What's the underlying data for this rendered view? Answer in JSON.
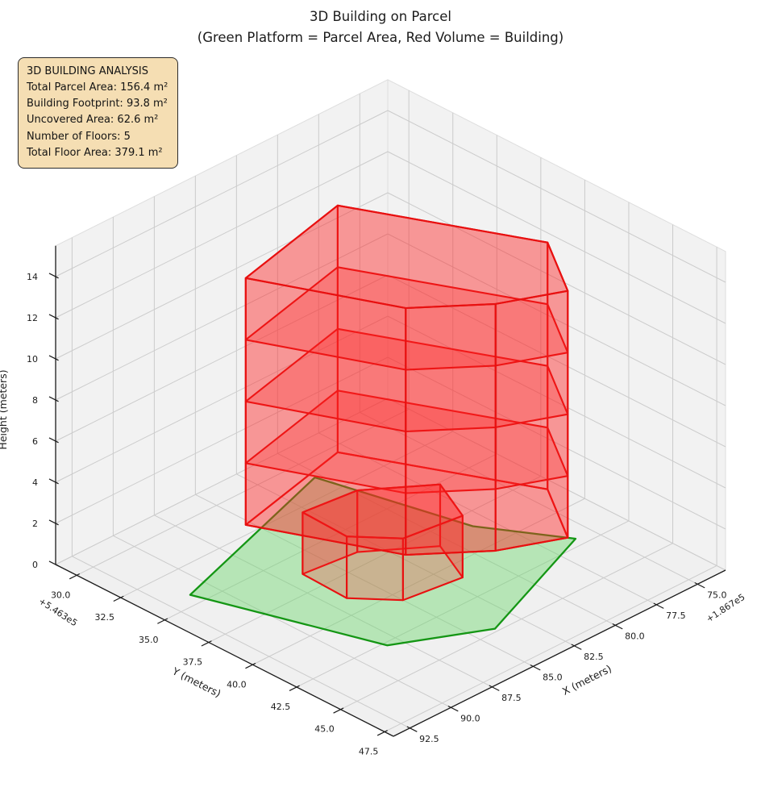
{
  "header": {
    "title_line1": "3D Building on Parcel",
    "title_line2": "(Green Platform = Parcel Area, Red Volume = Building)"
  },
  "annotation": {
    "lines": [
      "3D BUILDING ANALYSIS",
      "Total Parcel Area: 156.4 m²",
      "Building Footprint: 93.8 m²",
      "Uncovered Area: 62.6 m²",
      "Number of Floors: 5",
      "Total Floor Area: 379.1 m²"
    ],
    "bg_color": "#f5deb3"
  },
  "chart_data": {
    "type": "3d-building-extrusion",
    "title": "3D Building on Parcel",
    "subtitle": "(Green Platform = Parcel Area, Red Volume = Building)",
    "stats": {
      "total_parcel_area_m2": 156.4,
      "building_footprint_m2": 93.8,
      "uncovered_area_m2": 62.6,
      "number_of_floors": 5,
      "total_floor_area_m2": 379.1
    },
    "axes": {
      "x": {
        "label": "X (meters)",
        "ticks": [
          75.0,
          77.5,
          80.0,
          82.5,
          85.0,
          87.5,
          90.0,
          92.5
        ],
        "offset_text": "+1.867e5",
        "range": [
          73.3,
          93.5
        ]
      },
      "y": {
        "label": "Y (meters)",
        "ticks": [
          30.0,
          32.5,
          35.0,
          37.5,
          40.0,
          42.5,
          45.0,
          47.5
        ],
        "offset_text": "+5.463e5",
        "range": [
          28.8,
          48.0
        ]
      },
      "z": {
        "label": "Height (meters)",
        "ticks": [
          0,
          2,
          4,
          6,
          8,
          10,
          12,
          14
        ],
        "range": [
          0,
          15.5
        ]
      }
    },
    "style": {
      "pane_color": "#f2f2f2",
      "floor_color": "#f0f0f0",
      "grid_color": "#cbcbcb",
      "spine_color": "#1a1a1a",
      "tick_text_color": "#1c1c1c",
      "parcel_edge": "#149614",
      "parcel_face": "rgba(110,215,110,0.45)",
      "building_edge": "#e81010",
      "building_face": "rgba(255,40,40,0.26)"
    },
    "parcel": {
      "z": 0,
      "vertices": [
        [
          91.2,
          34.3
        ],
        [
          80.3,
          31.2
        ],
        [
          78.4,
          38.4
        ],
        [
          76.0,
          42.0
        ],
        [
          83.9,
          44.8
        ],
        [
          88.2,
          42.7
        ]
      ]
    },
    "building": {
      "floors": 5,
      "floor_height": 3,
      "upper": {
        "footprint": [
          [
            89.0,
            35.4
          ],
          [
            81.8,
            33.9
          ],
          [
            77.6,
            41.9
          ],
          [
            79.9,
            45.2
          ],
          [
            82.9,
            43.9
          ],
          [
            85.9,
            41.6
          ]
        ],
        "z0": 3,
        "z1": 15,
        "slabs": [
          6,
          9,
          12
        ]
      },
      "lower": {
        "footprint": [
          [
            86.5,
            36.3
          ],
          [
            83.5,
            36.6
          ],
          [
            80.6,
            38.6
          ],
          [
            81.8,
            41.0
          ],
          [
            85.0,
            40.6
          ],
          [
            86.6,
            38.9
          ]
        ],
        "z0": 0,
        "z1": 3
      }
    }
  }
}
